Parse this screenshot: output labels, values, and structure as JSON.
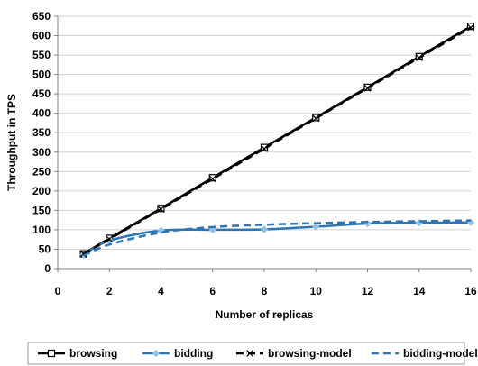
{
  "chart_data": {
    "type": "line",
    "title": "",
    "xlabel": "Number of replicas",
    "ylabel": "Throughput in TPS",
    "xlim": [
      0,
      16
    ],
    "ylim": [
      0,
      650
    ],
    "xticks": [
      0,
      2,
      4,
      6,
      8,
      10,
      12,
      14,
      16
    ],
    "yticks": [
      0,
      50,
      100,
      150,
      200,
      250,
      300,
      350,
      400,
      450,
      500,
      550,
      600,
      650
    ],
    "grid": "horizontal",
    "legend_position": "bottom",
    "series": [
      {
        "name": "browsing",
        "color": "#000000",
        "style": "solid",
        "marker": "square",
        "x": [
          1,
          2,
          4,
          6,
          8,
          10,
          12,
          14,
          16
        ],
        "y": [
          38,
          78,
          155,
          234,
          312,
          389,
          467,
          546,
          624
        ]
      },
      {
        "name": "bidding",
        "color": "#2e75b6",
        "style": "solid",
        "marker": "diamond",
        "x": [
          1,
          2,
          4,
          6,
          8,
          10,
          12,
          14,
          16
        ],
        "y": [
          36,
          72,
          98,
          100,
          101,
          108,
          116,
          118,
          119
        ]
      },
      {
        "name": "browsing-model",
        "color": "#000000",
        "style": "dashed",
        "marker": "x",
        "x": [
          1,
          2,
          4,
          6,
          8,
          10,
          12,
          14,
          16
        ],
        "y": [
          38,
          76,
          153,
          231,
          309,
          387,
          465,
          543,
          621
        ]
      },
      {
        "name": "bidding-model",
        "color": "#2e75b6",
        "style": "dashed",
        "marker": "none",
        "x": [
          1,
          2,
          4,
          6,
          8,
          10,
          12,
          14,
          16
        ],
        "y": [
          33,
          62,
          93,
          107,
          113,
          117,
          120,
          122,
          124
        ]
      }
    ]
  }
}
